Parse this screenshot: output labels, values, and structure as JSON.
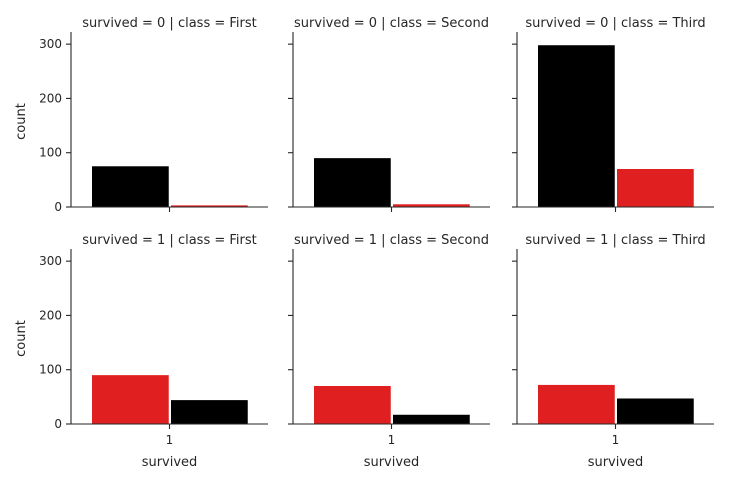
{
  "chart_data": {
    "type": "bar",
    "layout": "facet-grid 2x3",
    "ylabel": "count",
    "xlabel": "survived",
    "x_tick_label": "1",
    "ylim": [
      0,
      315
    ],
    "yticks": [
      0,
      100,
      200,
      300
    ],
    "grid": false,
    "legend": "none",
    "colors": {
      "black": "#000000",
      "red": "#e02020"
    },
    "panels": [
      {
        "title": "survived = 0 | class = First",
        "bars": [
          {
            "value": 75,
            "color": "black"
          },
          {
            "value": 3,
            "color": "red"
          }
        ]
      },
      {
        "title": "survived = 0 | class = Second",
        "bars": [
          {
            "value": 90,
            "color": "black"
          },
          {
            "value": 5,
            "color": "red"
          }
        ]
      },
      {
        "title": "survived = 0 | class = Third",
        "bars": [
          {
            "value": 298,
            "color": "black"
          },
          {
            "value": 70,
            "color": "red"
          }
        ]
      },
      {
        "title": "survived = 1 | class = First",
        "bars": [
          {
            "value": 90,
            "color": "red"
          },
          {
            "value": 44,
            "color": "black"
          }
        ]
      },
      {
        "title": "survived = 1 | class = Second",
        "bars": [
          {
            "value": 70,
            "color": "red"
          },
          {
            "value": 17,
            "color": "black"
          }
        ]
      },
      {
        "title": "survived = 1 | class = Third",
        "bars": [
          {
            "value": 72,
            "color": "red"
          },
          {
            "value": 47,
            "color": "black"
          }
        ]
      }
    ]
  }
}
